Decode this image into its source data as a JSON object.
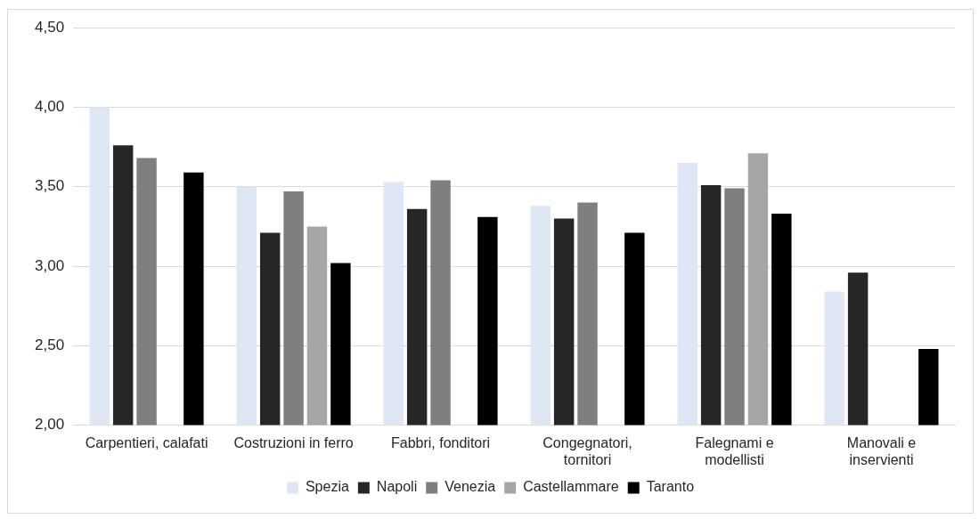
{
  "chart_data": {
    "type": "bar",
    "categories": [
      "Carpentieri, calafati",
      "Costruzioni in ferro",
      "Fabbri, fonditori",
      "Congegnatori, tornitori",
      "Falegnami e modellisti",
      "Manovali e inservienti"
    ],
    "series": [
      {
        "name": "Spezia",
        "color": "#dfe6f4",
        "values": [
          4.0,
          3.5,
          3.53,
          3.38,
          3.65,
          2.84
        ]
      },
      {
        "name": "Napoli",
        "color": "#262626",
        "values": [
          3.76,
          3.21,
          3.36,
          3.3,
          3.51,
          2.96
        ]
      },
      {
        "name": "Venezia",
        "color": "#7f7f7f",
        "values": [
          3.68,
          3.47,
          3.54,
          3.4,
          3.49,
          null
        ]
      },
      {
        "name": "Castellammare",
        "color": "#a6a6a6",
        "values": [
          null,
          3.25,
          null,
          null,
          3.71,
          null
        ]
      },
      {
        "name": "Taranto",
        "color": "#000000",
        "values": [
          3.59,
          3.02,
          3.31,
          3.21,
          3.33,
          2.48
        ]
      }
    ],
    "ylim": [
      2,
      4.5
    ],
    "yticks": [
      {
        "value": 2,
        "label": "2,00"
      },
      {
        "value": 2.5,
        "label": "2,50"
      },
      {
        "value": 3,
        "label": "3,00"
      },
      {
        "value": 3.5,
        "label": "3,50"
      },
      {
        "value": 4,
        "label": "4,00"
      },
      {
        "value": 4.5,
        "label": "4,50"
      }
    ],
    "grid": "y",
    "legend": "bottom"
  }
}
